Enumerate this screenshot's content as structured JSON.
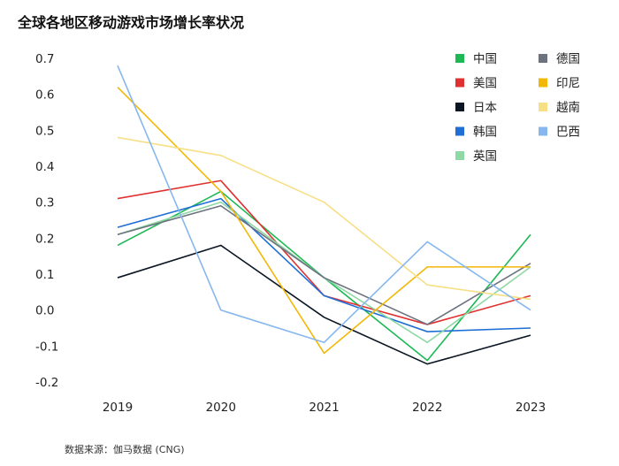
{
  "title": "全球各地区移动游戏市场增长率状况",
  "source": "数据来源：伽马数据 (CNG)",
  "chart_data": {
    "type": "line",
    "title": "全球各地区移动游戏市场增长率状况",
    "x": [
      "2019",
      "2020",
      "2021",
      "2022",
      "2023"
    ],
    "ylim": [
      -0.2,
      0.7
    ],
    "yticks": [
      "0.7",
      "0.6",
      "0.5",
      "0.4",
      "0.3",
      "0.2",
      "0.1",
      "0.0",
      "-0.1",
      "-0.2"
    ],
    "ytick_values": [
      0.7,
      0.6,
      0.5,
      0.4,
      0.3,
      0.2,
      0.1,
      0.0,
      -0.1,
      -0.2
    ],
    "grid": false,
    "legend_position": "top-right",
    "series": [
      {
        "name": "中国",
        "color": "#1db954",
        "values": [
          0.18,
          0.33,
          0.09,
          -0.14,
          0.21
        ]
      },
      {
        "name": "美国",
        "color": "#e03131",
        "values": [
          0.31,
          0.36,
          0.04,
          -0.04,
          0.04
        ]
      },
      {
        "name": "日本",
        "color": "#0b1523",
        "values": [
          0.09,
          0.18,
          -0.02,
          -0.15,
          -0.07
        ]
      },
      {
        "name": "韩国",
        "color": "#1f6fd6",
        "values": [
          0.23,
          0.31,
          0.04,
          -0.06,
          -0.05
        ]
      },
      {
        "name": "英国",
        "color": "#8ed8a4",
        "values": [
          0.21,
          0.3,
          0.09,
          -0.09,
          0.12
        ]
      },
      {
        "name": "德国",
        "color": "#6c737f",
        "values": [
          0.21,
          0.29,
          0.09,
          -0.04,
          0.13
        ]
      },
      {
        "name": "印尼",
        "color": "#f2b807",
        "values": [
          0.62,
          0.33,
          -0.12,
          0.12,
          0.12
        ]
      },
      {
        "name": "越南",
        "color": "#f7df86",
        "values": [
          0.48,
          0.43,
          0.3,
          0.07,
          0.03
        ]
      },
      {
        "name": "巴西",
        "color": "#86b7ee",
        "values": [
          0.68,
          0.0,
          -0.09,
          0.19,
          0.0
        ]
      }
    ]
  }
}
